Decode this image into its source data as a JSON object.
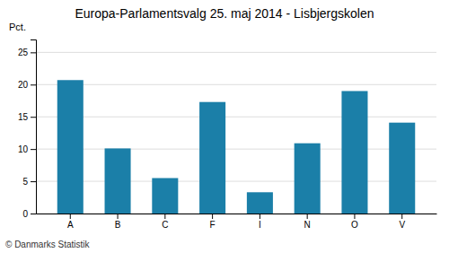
{
  "chart_data": {
    "type": "bar",
    "title": "Europa-Parlamentsvalg 25. maj 2014 - Lisbjergskolen",
    "ylabel": "Pct.",
    "footer": "© Danmarks Statistik",
    "categories": [
      "A",
      "B",
      "C",
      "F",
      "I",
      "N",
      "O",
      "V"
    ],
    "values": [
      20.7,
      10.1,
      5.5,
      17.3,
      3.3,
      10.9,
      19.0,
      14.1
    ],
    "color": "#1b7fa8",
    "ylim": [
      0,
      27
    ],
    "yticks": [
      0,
      5,
      10,
      15,
      20,
      25
    ],
    "grid": true
  }
}
